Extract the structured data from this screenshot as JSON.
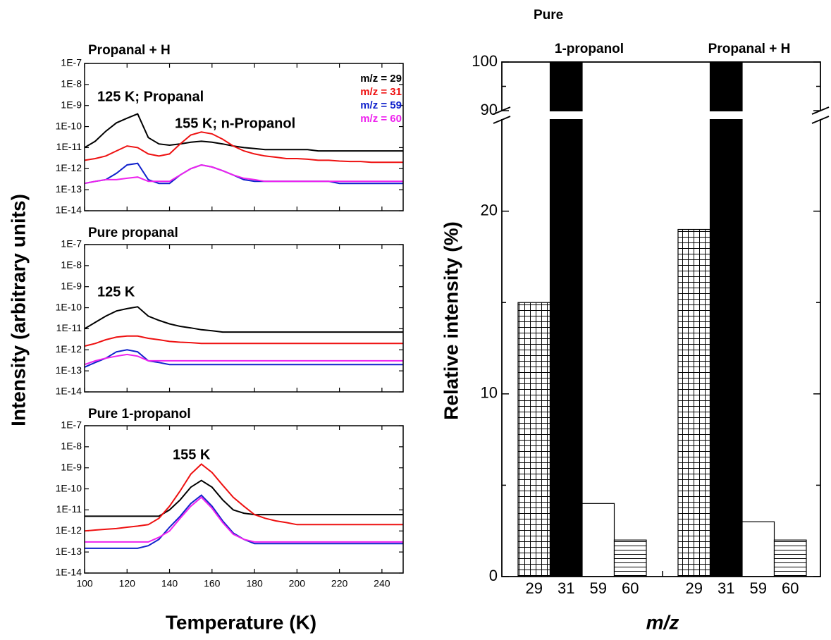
{
  "chart_data": [
    {
      "type": "line",
      "title": "Propanal + H",
      "log_y": true,
      "x": [
        100,
        105,
        110,
        115,
        120,
        125,
        130,
        135,
        140,
        145,
        150,
        155,
        160,
        165,
        170,
        175,
        180,
        185,
        190,
        195,
        200,
        205,
        210,
        215,
        220,
        225,
        230,
        235,
        240,
        245,
        250
      ],
      "xlim": [
        100,
        250
      ],
      "ylim": [
        1e-14,
        1e-07
      ],
      "yticks": [
        {
          "value": 1e-14,
          "label": "1E-14"
        },
        {
          "value": 1e-13,
          "label": "1E-13"
        },
        {
          "value": 1e-12,
          "label": "1E-12"
        },
        {
          "value": 1e-11,
          "label": "1E-11"
        },
        {
          "value": 1e-10,
          "label": "1E-10"
        },
        {
          "value": 1e-09,
          "label": "1E-9"
        },
        {
          "value": 1e-08,
          "label": "1E-8"
        },
        {
          "value": 1e-07,
          "label": "1E-7"
        }
      ],
      "annotations": [
        "125 K; Propanal",
        "155 K; n-Propanol"
      ],
      "series": [
        {
          "name": "m/z = 29",
          "color": "#000000",
          "values": [
            1e-11,
            2e-11,
            6e-11,
            1.5e-10,
            2.5e-10,
            4e-10,
            3e-11,
            1.5e-11,
            1.3e-11,
            1.5e-11,
            1.8e-11,
            2e-11,
            1.8e-11,
            1.5e-11,
            1.2e-11,
            1e-11,
            9e-12,
            8e-12,
            8e-12,
            8e-12,
            8e-12,
            8e-12,
            7e-12,
            7e-12,
            7e-12,
            7e-12,
            7e-12,
            7e-12,
            7e-12,
            7e-12,
            7e-12
          ]
        },
        {
          "name": "m/z = 31",
          "color": "#ee1111",
          "values": [
            2.5e-12,
            3e-12,
            4e-12,
            7e-12,
            1.2e-11,
            1e-11,
            5e-12,
            4e-12,
            5e-12,
            1.5e-11,
            4e-11,
            5.5e-11,
            4.5e-11,
            2.5e-11,
            1.2e-11,
            7e-12,
            5e-12,
            4e-12,
            3.5e-12,
            3e-12,
            3e-12,
            2.8e-12,
            2.5e-12,
            2.5e-12,
            2.3e-12,
            2.2e-12,
            2.2e-12,
            2e-12,
            2e-12,
            2e-12,
            2e-12
          ]
        },
        {
          "name": "m/z = 59",
          "color": "#1122cc",
          "values": [
            2e-13,
            2.5e-13,
            3e-13,
            6e-13,
            1.5e-12,
            1.8e-12,
            3e-13,
            2e-13,
            2e-13,
            5e-13,
            1e-12,
            1.5e-12,
            1.2e-12,
            8e-13,
            5e-13,
            3e-13,
            2.5e-13,
            2.5e-13,
            2.5e-13,
            2.5e-13,
            2.5e-13,
            2.5e-13,
            2.5e-13,
            2.5e-13,
            2e-13,
            2e-13,
            2e-13,
            2e-13,
            2e-13,
            2e-13,
            2e-13
          ]
        },
        {
          "name": "m/z = 60",
          "color": "#ee22ee",
          "values": [
            2e-13,
            2.5e-13,
            3e-13,
            3e-13,
            3.5e-13,
            4e-13,
            2.5e-13,
            2.5e-13,
            2.5e-13,
            5e-13,
            1e-12,
            1.5e-12,
            1.2e-12,
            8e-13,
            5e-13,
            3.5e-13,
            3e-13,
            2.5e-13,
            2.5e-13,
            2.5e-13,
            2.5e-13,
            2.5e-13,
            2.5e-13,
            2.5e-13,
            2.5e-13,
            2.5e-13,
            2.5e-13,
            2.5e-13,
            2.5e-13,
            2.5e-13,
            2.5e-13
          ]
        }
      ]
    },
    {
      "type": "line",
      "title": "Pure propanal",
      "log_y": true,
      "ylabel": "Intensity (arbitrary units)",
      "x": [
        100,
        105,
        110,
        115,
        120,
        125,
        130,
        135,
        140,
        145,
        150,
        155,
        160,
        165,
        170,
        175,
        180,
        185,
        190,
        195,
        200,
        205,
        210,
        215,
        220,
        225,
        230,
        235,
        240,
        245,
        250
      ],
      "xlim": [
        100,
        250
      ],
      "ylim": [
        1e-14,
        1e-07
      ],
      "yticks": [
        {
          "value": 1e-14,
          "label": "1E-14"
        },
        {
          "value": 1e-13,
          "label": "1E-13"
        },
        {
          "value": 1e-12,
          "label": "1E-12"
        },
        {
          "value": 1e-11,
          "label": "1E-11"
        },
        {
          "value": 1e-10,
          "label": "1E-10"
        },
        {
          "value": 1e-09,
          "label": "1E-9"
        },
        {
          "value": 1e-08,
          "label": "1E-8"
        },
        {
          "value": 1e-07,
          "label": "1E-7"
        }
      ],
      "annotations": [
        "125 K"
      ],
      "series": [
        {
          "color": "#000000",
          "values": [
            1e-11,
            2e-11,
            4e-11,
            7e-11,
            9e-11,
            1.1e-10,
            4e-11,
            2.5e-11,
            1.7e-11,
            1.3e-11,
            1.1e-11,
            9e-12,
            8e-12,
            7e-12,
            7e-12,
            7e-12,
            7e-12,
            7e-12,
            7e-12,
            7e-12,
            7e-12,
            7e-12,
            7e-12,
            7e-12,
            7e-12,
            7e-12,
            7e-12,
            7e-12,
            7e-12,
            7e-12,
            7e-12
          ]
        },
        {
          "color": "#ee1111",
          "values": [
            1.5e-12,
            2e-12,
            3e-12,
            4e-12,
            4.5e-12,
            4.5e-12,
            3.5e-12,
            3e-12,
            2.5e-12,
            2.3e-12,
            2.2e-12,
            2e-12,
            2e-12,
            2e-12,
            2e-12,
            2e-12,
            2e-12,
            2e-12,
            2e-12,
            2e-12,
            2e-12,
            2e-12,
            2e-12,
            2e-12,
            2e-12,
            2e-12,
            2e-12,
            2e-12,
            2e-12,
            2e-12,
            2e-12
          ]
        },
        {
          "color": "#1122cc",
          "values": [
            1.5e-13,
            2.5e-13,
            4e-13,
            8e-13,
            1e-12,
            8e-13,
            3e-13,
            2.5e-13,
            2e-13,
            2e-13,
            2e-13,
            2e-13,
            2e-13,
            2e-13,
            2e-13,
            2e-13,
            2e-13,
            2e-13,
            2e-13,
            2e-13,
            2e-13,
            2e-13,
            2e-13,
            2e-13,
            2e-13,
            2e-13,
            2e-13,
            2e-13,
            2e-13,
            2e-13,
            2e-13
          ]
        },
        {
          "color": "#ee22ee",
          "values": [
            2e-13,
            3e-13,
            4e-13,
            5e-13,
            6e-13,
            5e-13,
            3e-13,
            3e-13,
            3e-13,
            3e-13,
            3e-13,
            3e-13,
            3e-13,
            3e-13,
            3e-13,
            3e-13,
            3e-13,
            3e-13,
            3e-13,
            3e-13,
            3e-13,
            3e-13,
            3e-13,
            3e-13,
            3e-13,
            3e-13,
            3e-13,
            3e-13,
            3e-13,
            3e-13,
            3e-13
          ]
        }
      ]
    },
    {
      "type": "line",
      "title": "Pure 1-propanol",
      "log_y": true,
      "xlabel": "Temperature (K)",
      "x": [
        100,
        105,
        110,
        115,
        120,
        125,
        130,
        135,
        140,
        145,
        150,
        155,
        160,
        165,
        170,
        175,
        180,
        185,
        190,
        195,
        200,
        205,
        210,
        215,
        220,
        225,
        230,
        235,
        240,
        245,
        250
      ],
      "xlim": [
        100,
        250
      ],
      "ylim": [
        1e-14,
        1e-07
      ],
      "xticks": [
        100,
        120,
        140,
        160,
        180,
        200,
        220,
        240
      ],
      "yticks": [
        {
          "value": 1e-14,
          "label": "1E-14"
        },
        {
          "value": 1e-13,
          "label": "1E-13"
        },
        {
          "value": 1e-12,
          "label": "1E-12"
        },
        {
          "value": 1e-11,
          "label": "1E-11"
        },
        {
          "value": 1e-10,
          "label": "1E-10"
        },
        {
          "value": 1e-09,
          "label": "1E-9"
        },
        {
          "value": 1e-08,
          "label": "1E-8"
        },
        {
          "value": 1e-07,
          "label": "1E-7"
        }
      ],
      "annotations": [
        "155 K"
      ],
      "series": [
        {
          "color": "#000000",
          "values": [
            5e-12,
            5e-12,
            5e-12,
            5e-12,
            5e-12,
            5e-12,
            5e-12,
            5e-12,
            1e-11,
            3e-11,
            1.2e-10,
            2.5e-10,
            1.2e-10,
            3e-11,
            1e-11,
            7e-12,
            6e-12,
            6e-12,
            6e-12,
            6e-12,
            6e-12,
            6e-12,
            6e-12,
            6e-12,
            6e-12,
            6e-12,
            6e-12,
            6e-12,
            6e-12,
            6e-12,
            6e-12
          ]
        },
        {
          "color": "#ee1111",
          "values": [
            1e-12,
            1.1e-12,
            1.2e-12,
            1.3e-12,
            1.5e-12,
            1.7e-12,
            2e-12,
            4e-12,
            1.5e-11,
            8e-11,
            5e-10,
            1.5e-09,
            6e-10,
            1.5e-10,
            4e-11,
            1.5e-11,
            6e-12,
            4e-12,
            3e-12,
            2.5e-12,
            2e-12,
            2e-12,
            2e-12,
            2e-12,
            2e-12,
            2e-12,
            2e-12,
            2e-12,
            2e-12,
            2e-12,
            2e-12
          ]
        },
        {
          "color": "#1122cc",
          "values": [
            1.5e-13,
            1.5e-13,
            1.5e-13,
            1.5e-13,
            1.5e-13,
            1.5e-13,
            2e-13,
            4e-13,
            1.5e-12,
            5e-12,
            2e-11,
            5e-11,
            1.5e-11,
            3e-12,
            8e-13,
            4e-13,
            2.5e-13,
            2.5e-13,
            2.5e-13,
            2.5e-13,
            2.5e-13,
            2.5e-13,
            2.5e-13,
            2.5e-13,
            2.5e-13,
            2.5e-13,
            2.5e-13,
            2.5e-13,
            2.5e-13,
            2.5e-13,
            2.5e-13
          ]
        },
        {
          "color": "#ee22ee",
          "values": [
            3e-13,
            3e-13,
            3e-13,
            3e-13,
            3e-13,
            3e-13,
            3e-13,
            5e-13,
            1e-12,
            4e-12,
            1.5e-11,
            4e-11,
            1.2e-11,
            2.5e-12,
            7e-13,
            4e-13,
            3e-13,
            3e-13,
            3e-13,
            3e-13,
            3e-13,
            3e-13,
            3e-13,
            3e-13,
            3e-13,
            3e-13,
            3e-13,
            3e-13,
            3e-13,
            3e-13,
            3e-13
          ]
        }
      ]
    },
    {
      "type": "bar",
      "ylabel": "Relative intensity (%)",
      "xlabel": "m/z",
      "ylim": [
        0,
        100
      ],
      "axis_break": [
        25,
        90
      ],
      "yticks": [
        0,
        10,
        20,
        90,
        100
      ],
      "minor_yticks": [
        5,
        15,
        95
      ],
      "patterns": [
        "grid",
        "solid",
        "open",
        "hlines"
      ],
      "groups": [
        {
          "label": [
            "Pure",
            "1-propanol"
          ],
          "categories": [
            "29",
            "31",
            "59",
            "60"
          ],
          "values": [
            15,
            100,
            4,
            2
          ]
        },
        {
          "label": [
            "Propanal + H"
          ],
          "categories": [
            "29",
            "31",
            "59",
            "60"
          ],
          "values": [
            19,
            100,
            3,
            2
          ]
        }
      ]
    }
  ]
}
